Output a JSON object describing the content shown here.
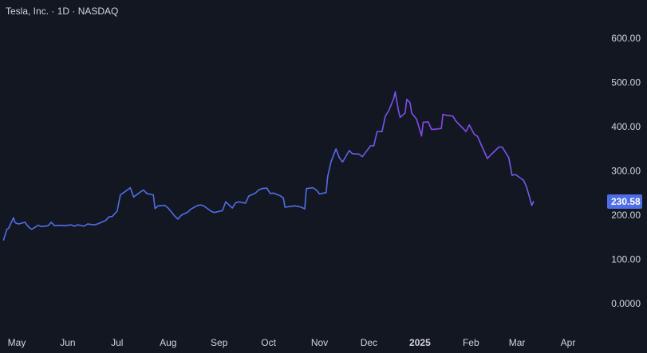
{
  "header": {
    "title": "Tesla, Inc. · 1D · NASDAQ"
  },
  "colors": {
    "background": "#131722",
    "line_start": "#4f6ee8",
    "line_end": "#8b44f0",
    "badge": "#4e6ee8",
    "text": "#d1d4dc"
  },
  "chart_data": {
    "type": "line",
    "title": "Tesla, Inc. · 1D · NASDAQ",
    "xlabel": "",
    "ylabel": "",
    "ylim": [
      -40,
      640
    ],
    "y_ticks": [
      "600.00",
      "500.00",
      "400.00",
      "300.00",
      "200.00",
      "100.00",
      "0.0000"
    ],
    "y_tick_values": [
      600,
      500,
      400,
      300,
      200,
      100,
      0
    ],
    "x_ticks": [
      {
        "label": "May",
        "date": "2024-05-01",
        "bold": false
      },
      {
        "label": "Jun",
        "date": "2024-06-01",
        "bold": false
      },
      {
        "label": "Jul",
        "date": "2024-07-01",
        "bold": false
      },
      {
        "label": "Aug",
        "date": "2024-08-01",
        "bold": false
      },
      {
        "label": "Sep",
        "date": "2024-09-01",
        "bold": false
      },
      {
        "label": "Oct",
        "date": "2024-10-01",
        "bold": false
      },
      {
        "label": "Nov",
        "date": "2024-11-01",
        "bold": false
      },
      {
        "label": "Dec",
        "date": "2024-12-01",
        "bold": false
      },
      {
        "label": "2025",
        "date": "2025-01-01",
        "bold": true
      },
      {
        "label": "Feb",
        "date": "2025-02-01",
        "bold": false
      },
      {
        "label": "Mar",
        "date": "2025-03-01",
        "bold": false
      },
      {
        "label": "Apr",
        "date": "2025-04-01",
        "bold": false
      }
    ],
    "last_price_label": "230.58",
    "last_value": 230.58,
    "grid": false,
    "series": [
      {
        "points": [
          [
            "2024-04-23",
            144
          ],
          [
            "2024-04-25",
            168
          ],
          [
            "2024-04-26",
            170
          ],
          [
            "2024-04-29",
            194
          ],
          [
            "2024-04-30",
            183
          ],
          [
            "2024-05-02",
            180
          ],
          [
            "2024-05-06",
            184
          ],
          [
            "2024-05-08",
            174
          ],
          [
            "2024-05-10",
            168
          ],
          [
            "2024-05-14",
            177
          ],
          [
            "2024-05-16",
            174
          ],
          [
            "2024-05-20",
            176
          ],
          [
            "2024-05-22",
            184
          ],
          [
            "2024-05-24",
            176
          ],
          [
            "2024-05-28",
            177
          ],
          [
            "2024-05-30",
            176
          ],
          [
            "2024-06-03",
            178
          ],
          [
            "2024-06-05",
            175
          ],
          [
            "2024-06-07",
            178
          ],
          [
            "2024-06-11",
            175
          ],
          [
            "2024-06-13",
            180
          ],
          [
            "2024-06-17",
            178
          ],
          [
            "2024-06-19",
            180
          ],
          [
            "2024-06-21",
            183
          ],
          [
            "2024-06-24",
            188
          ],
          [
            "2024-06-26",
            196
          ],
          [
            "2024-06-28",
            197
          ],
          [
            "2024-07-01",
            209
          ],
          [
            "2024-07-03",
            246
          ],
          [
            "2024-07-05",
            251
          ],
          [
            "2024-07-09",
            262
          ],
          [
            "2024-07-11",
            241
          ],
          [
            "2024-07-15",
            252
          ],
          [
            "2024-07-17",
            257
          ],
          [
            "2024-07-19",
            249
          ],
          [
            "2024-07-23",
            246
          ],
          [
            "2024-07-24",
            215
          ],
          [
            "2024-07-26",
            221
          ],
          [
            "2024-07-30",
            222
          ],
          [
            "2024-08-01",
            216
          ],
          [
            "2024-08-05",
            198
          ],
          [
            "2024-08-07",
            191
          ],
          [
            "2024-08-09",
            200
          ],
          [
            "2024-08-13",
            207
          ],
          [
            "2024-08-15",
            214
          ],
          [
            "2024-08-19",
            222
          ],
          [
            "2024-08-21",
            223
          ],
          [
            "2024-08-23",
            220
          ],
          [
            "2024-08-27",
            209
          ],
          [
            "2024-08-29",
            206
          ],
          [
            "2024-09-03",
            210
          ],
          [
            "2024-09-05",
            230
          ],
          [
            "2024-09-09",
            216
          ],
          [
            "2024-09-11",
            228
          ],
          [
            "2024-09-13",
            230
          ],
          [
            "2024-09-17",
            227
          ],
          [
            "2024-09-19",
            243
          ],
          [
            "2024-09-23",
            250
          ],
          [
            "2024-09-25",
            257
          ],
          [
            "2024-09-27",
            260
          ],
          [
            "2024-09-30",
            261
          ],
          [
            "2024-10-02",
            249
          ],
          [
            "2024-10-04",
            250
          ],
          [
            "2024-10-08",
            244
          ],
          [
            "2024-10-10",
            239
          ],
          [
            "2024-10-11",
            218
          ],
          [
            "2024-10-15",
            220
          ],
          [
            "2024-10-17",
            221
          ],
          [
            "2024-10-21",
            218
          ],
          [
            "2024-10-23",
            214
          ],
          [
            "2024-10-24",
            260
          ],
          [
            "2024-10-28",
            262
          ],
          [
            "2024-10-30",
            257
          ],
          [
            "2024-11-01",
            248
          ],
          [
            "2024-11-05",
            251
          ],
          [
            "2024-11-06",
            288
          ],
          [
            "2024-11-08",
            321
          ],
          [
            "2024-11-11",
            350
          ],
          [
            "2024-11-13",
            330
          ],
          [
            "2024-11-15",
            320
          ],
          [
            "2024-11-19",
            346
          ],
          [
            "2024-11-21",
            339
          ],
          [
            "2024-11-25",
            338
          ],
          [
            "2024-11-27",
            332
          ],
          [
            "2024-12-02",
            357
          ],
          [
            "2024-12-04",
            357
          ],
          [
            "2024-12-06",
            389
          ],
          [
            "2024-12-09",
            389
          ],
          [
            "2024-12-11",
            424
          ],
          [
            "2024-12-13",
            436
          ],
          [
            "2024-12-16",
            463
          ],
          [
            "2024-12-17",
            479
          ],
          [
            "2024-12-19",
            436
          ],
          [
            "2024-12-20",
            421
          ],
          [
            "2024-12-23",
            431
          ],
          [
            "2024-12-24",
            462
          ],
          [
            "2024-12-26",
            454
          ],
          [
            "2024-12-27",
            431
          ],
          [
            "2024-12-30",
            417
          ],
          [
            "2025-01-02",
            379
          ],
          [
            "2025-01-03",
            410
          ],
          [
            "2025-01-06",
            411
          ],
          [
            "2025-01-08",
            394
          ],
          [
            "2025-01-10",
            394
          ],
          [
            "2025-01-14",
            396
          ],
          [
            "2025-01-15",
            428
          ],
          [
            "2025-01-17",
            426
          ],
          [
            "2025-01-21",
            424
          ],
          [
            "2025-01-23",
            412
          ],
          [
            "2025-01-27",
            397
          ],
          [
            "2025-01-29",
            389
          ],
          [
            "2025-01-31",
            404
          ],
          [
            "2025-02-03",
            383
          ],
          [
            "2025-02-05",
            378
          ],
          [
            "2025-02-07",
            361
          ],
          [
            "2025-02-11",
            328
          ],
          [
            "2025-02-13",
            336
          ],
          [
            "2025-02-18",
            354
          ],
          [
            "2025-02-20",
            354
          ],
          [
            "2025-02-24",
            330
          ],
          [
            "2025-02-26",
            290
          ],
          [
            "2025-02-28",
            292
          ],
          [
            "2025-03-03",
            284
          ],
          [
            "2025-03-05",
            279
          ],
          [
            "2025-03-07",
            262
          ],
          [
            "2025-03-10",
            222
          ],
          [
            "2025-03-11",
            230.58
          ]
        ]
      }
    ]
  }
}
